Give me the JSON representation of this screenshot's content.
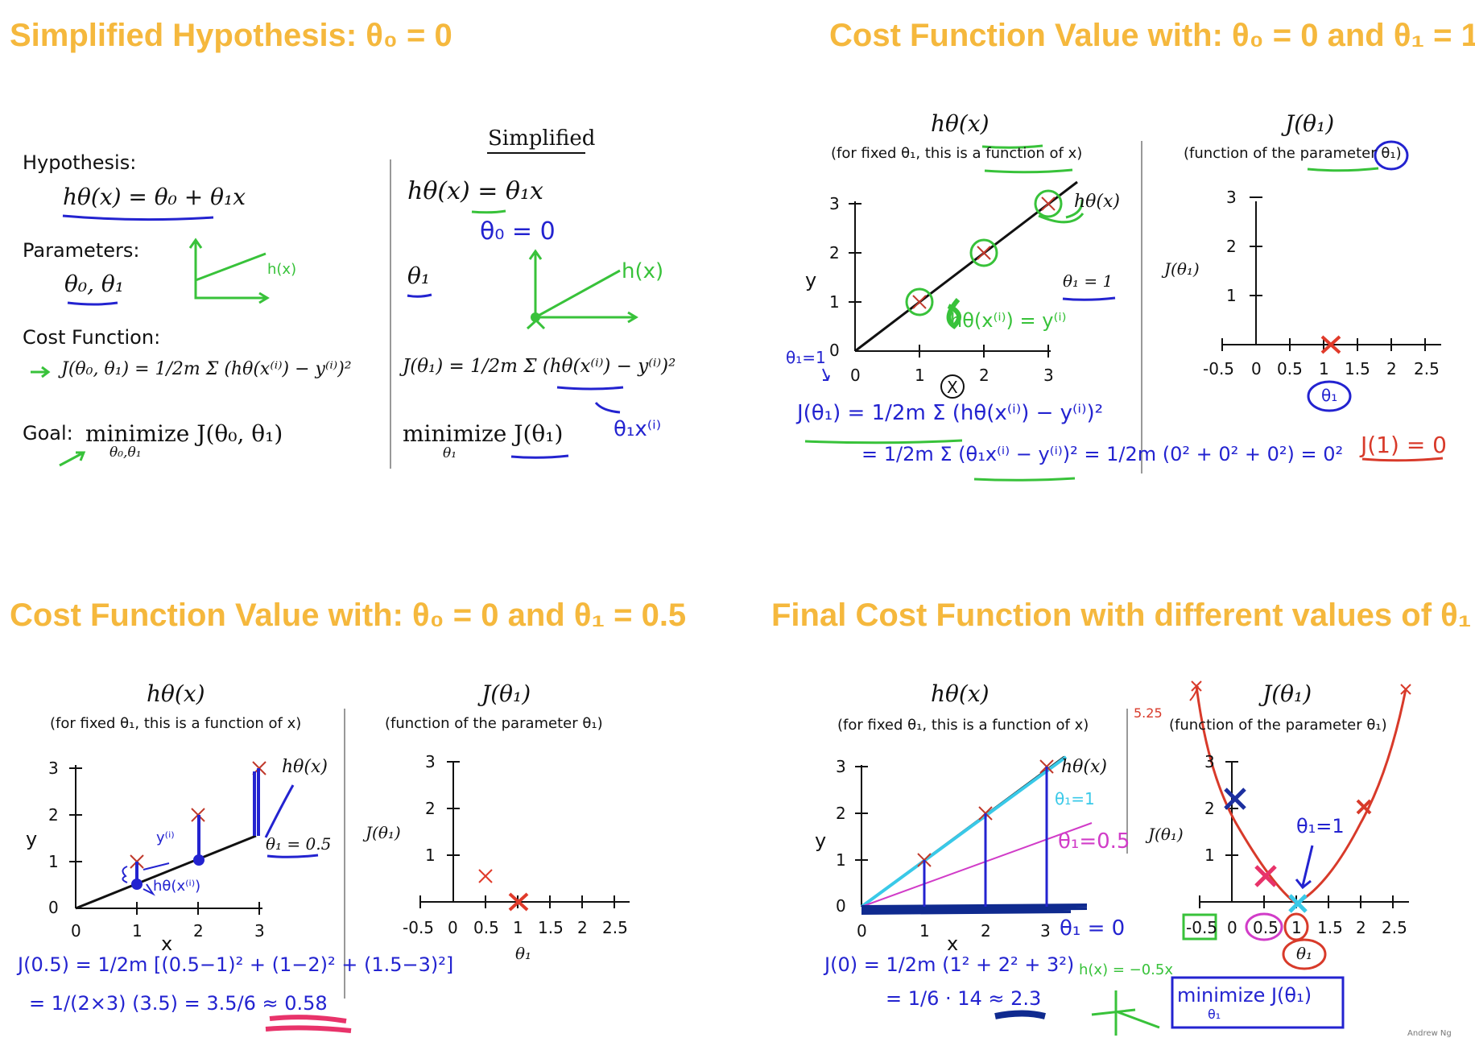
{
  "titles": {
    "q1": "Simplified Hypothesis: θ₀ = 0",
    "q2": "Cost Function Value with: θ₀ = 0 and θ₁ = 1",
    "q3": "Cost Function Value with: θ₀ = 0 and θ₁ = 0.5",
    "q4": "Final Cost Function with different values of θ₁"
  },
  "q1": {
    "simplified_heading": "Simplified",
    "hypothesis_label": "Hypothesis:",
    "hypothesis_formula": "hθ(x) = θ₀ + θ₁x",
    "parameters_label": "Parameters:",
    "parameters_formula": "θ₀, θ₁",
    "cost_label": "Cost Function:",
    "cost_formula": "J(θ₀, θ₁) = 1/2m Σ (hθ(x⁽ⁱ⁾) − y⁽ⁱ⁾)²",
    "goal_label": "Goal:",
    "goal_formula": "minimize J(θ₀, θ₁)",
    "goal_sub": "θ₀,θ₁",
    "simp_hypothesis": "hθ(x) = θ₁x",
    "simp_param": "θ₁",
    "simp_cost": "J(θ₁) = 1/2m Σ (hθ(x⁽ⁱ⁾) − y⁽ⁱ⁾)²",
    "simp_goal": "minimize J(θ₁)",
    "simp_goal_sub": "θ₁",
    "hand_theta0": "θ₀ = 0",
    "hand_hx_left": "h(x)",
    "hand_hx_right": "h(x)",
    "hand_theta_x": "θ₁x⁽ⁱ⁾"
  },
  "q2": {
    "left_header": "hθ(x)",
    "left_sub": "(for fixed θ₁, this is a function of x)",
    "right_header": "J(θ₁)",
    "right_sub": "(function of the parameter θ₁)",
    "y_label": "y",
    "j_label": "J(θ₁)",
    "line_label": "hθ(x)",
    "theta_label": "θ₁ = 1",
    "left_y_ticks": [
      "0",
      "1",
      "2",
      "3"
    ],
    "left_x_ticks": [
      "0",
      "1",
      "2",
      "3"
    ],
    "right_y_ticks": [
      "1",
      "2",
      "3"
    ],
    "right_x_ticks": [
      "-0.5",
      "0",
      "0.5",
      "1",
      "1.5",
      "2",
      "2.5"
    ],
    "hand_h_eq_y": "hθ(x⁽ⁱ⁾) = y⁽ⁱ⁾",
    "hand_theta1": "θ₁=1",
    "hand_line1": "J(θ₁) = 1/2m Σ (hθ(x⁽ⁱ⁾) − y⁽ⁱ⁾)²",
    "hand_line2": "= 1/2m Σ (θ₁x⁽ⁱ⁾ − y⁽ⁱ⁾)² = 1/2m (0² + 0² + 0²) = 0²",
    "hand_result": "J(1) = 0",
    "hand_theta_circle": "θ₁",
    "hand_x_circle": "X"
  },
  "q3": {
    "left_header": "hθ(x)",
    "left_sub": "(for fixed θ₁, this is a function of x)",
    "right_header": "J(θ₁)",
    "right_sub": "(function of the parameter θ₁)",
    "y_label": "y",
    "x_label": "x",
    "j_label": "J(θ₁)",
    "theta_axis": "θ₁",
    "line_label": "hθ(x)",
    "theta_label": "θ₁ = 0.5",
    "left_y_ticks": [
      "0",
      "1",
      "2",
      "3"
    ],
    "left_x_ticks": [
      "0",
      "1",
      "2",
      "3"
    ],
    "right_y_ticks": [
      "1",
      "2",
      "3"
    ],
    "right_x_ticks": [
      "-0.5",
      "0",
      "0.5",
      "1",
      "1.5",
      "2",
      "2.5"
    ],
    "hand_y": "y⁽ⁱ⁾",
    "hand_h": "hθ(x⁽ⁱ⁾)",
    "hand_line1": "J(0.5) = 1/2m [(0.5−1)² + (1−2)² + (1.5−3)²]",
    "hand_line2": "= 1/(2×3) (3.5) = 3.5/6 ≈ 0.58"
  },
  "q4": {
    "left_header": "hθ(x)",
    "left_sub": "(for fixed θ₁, this is a function of x)",
    "right_header": "J(θ₁)",
    "right_sub": "(function of the parameter θ₁)",
    "y_label": "y",
    "x_label": "x",
    "j_label": "J(θ₁)",
    "theta_axis": "θ₁",
    "line_label": "hθ(x)",
    "left_y_ticks": [
      "0",
      "1",
      "2",
      "3"
    ],
    "left_x_ticks": [
      "0",
      "1",
      "2",
      "3"
    ],
    "right_y_ticks": [
      "1",
      "2",
      "3"
    ],
    "right_x_ticks": [
      "-0.5",
      "0",
      "0.5",
      "1",
      "1.5",
      "2",
      "2.5"
    ],
    "hand_theta1": "θ₁=1",
    "hand_theta05": "θ₁=0.5",
    "hand_theta0": "θ₁ = 0",
    "hand_theta1_right": "θ₁=1",
    "hand_j0": "J(0) = 1/2m (1² + 2² + 3²)",
    "hand_j0_2": "= 1/6 · 14 ≈ 2.3",
    "hand_minimize": "minimize J(θ₁)",
    "hand_minimize_sub": "θ₁",
    "hand_hx": "h(x) = −0.5x",
    "hand_s": "5.25",
    "author": "Andrew Ng"
  },
  "colors": {
    "title": "#f5b83d",
    "green": "#38c23a",
    "blue": "#2323d0",
    "red": "#d83a2a",
    "cyan": "#39c9e8",
    "pink": "#d13cc8",
    "navy": "#123a8f",
    "hot_pink": "#e8336a"
  }
}
